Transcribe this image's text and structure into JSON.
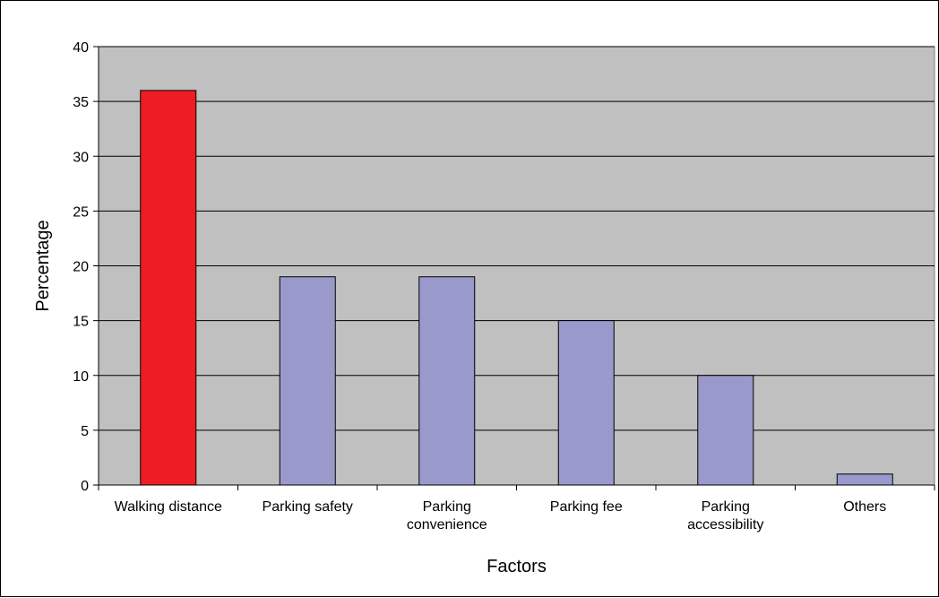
{
  "chart_data": {
    "type": "bar",
    "title": "",
    "xlabel": "Factors",
    "ylabel": "Percentage",
    "categories": [
      [
        "Walking distance"
      ],
      [
        "Parking safety"
      ],
      [
        "Parking",
        "convenience"
      ],
      [
        "Parking fee"
      ],
      [
        "Parking",
        "accessibility"
      ],
      [
        "Others"
      ]
    ],
    "values": [
      36,
      19,
      19,
      15,
      10,
      1
    ],
    "bar_colors": [
      "#ee1c24",
      "#9999cc",
      "#9999cc",
      "#9999cc",
      "#9999cc",
      "#9999cc"
    ],
    "ylim": [
      0,
      40
    ],
    "yticks": [
      0,
      5,
      10,
      15,
      20,
      25,
      30,
      35,
      40
    ],
    "grid": true,
    "legend": "none",
    "plot_background": "#c0c0c0",
    "gridline_color": "#000000"
  }
}
